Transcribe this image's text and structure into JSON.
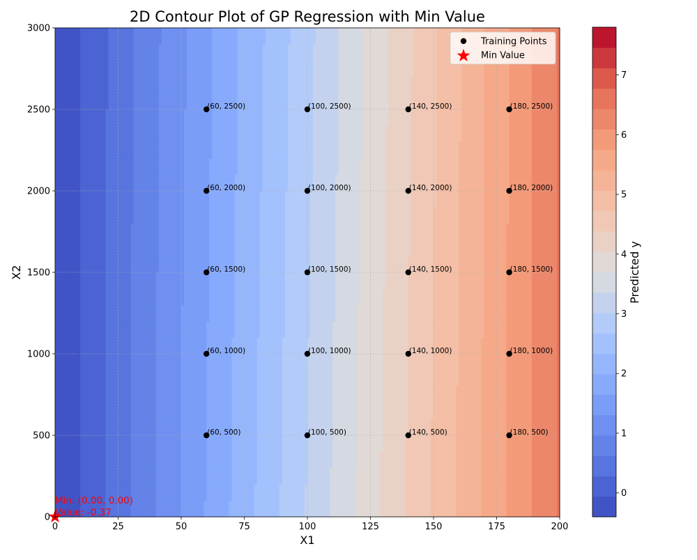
{
  "chart_data": {
    "type": "contour",
    "title": "2D Contour Plot of GP Regression with Min Value",
    "xlabel": "X1",
    "ylabel": "X2",
    "xlim": [
      0,
      200
    ],
    "ylim": [
      0,
      3000
    ],
    "x_ticks": [
      0,
      25,
      50,
      75,
      100,
      125,
      150,
      175,
      200
    ],
    "y_ticks": [
      0,
      500,
      1000,
      1500,
      2000,
      2500,
      3000
    ],
    "grid": true,
    "colormap": "coolwarm",
    "colorbar": {
      "label": "Predicted y",
      "range": [
        -0.4,
        7.8
      ],
      "ticks": [
        0,
        1,
        2,
        3,
        4,
        5,
        6,
        7
      ],
      "levels": 24
    },
    "surface": {
      "value_at_min": -0.37,
      "value_at_x1_200": 6.5,
      "description_fields": [
        "min_value"
      ]
    },
    "training_points": [
      {
        "x": 60,
        "y": 500,
        "label": "(60, 500)"
      },
      {
        "x": 60,
        "y": 1000,
        "label": "(60, 1000)"
      },
      {
        "x": 60,
        "y": 1500,
        "label": "(60, 1500)"
      },
      {
        "x": 60,
        "y": 2000,
        "label": "(60, 2000)"
      },
      {
        "x": 60,
        "y": 2500,
        "label": "(60, 2500)"
      },
      {
        "x": 100,
        "y": 500,
        "label": "(100, 500)"
      },
      {
        "x": 100,
        "y": 1000,
        "label": "(100, 1000)"
      },
      {
        "x": 100,
        "y": 1500,
        "label": "(100, 1500)"
      },
      {
        "x": 100,
        "y": 2000,
        "label": "(100, 2000)"
      },
      {
        "x": 100,
        "y": 2500,
        "label": "(100, 2500)"
      },
      {
        "x": 140,
        "y": 500,
        "label": "(140, 500)"
      },
      {
        "x": 140,
        "y": 1000,
        "label": "(140, 1000)"
      },
      {
        "x": 140,
        "y": 1500,
        "label": "(140, 1500)"
      },
      {
        "x": 140,
        "y": 2000,
        "label": "(140, 2000)"
      },
      {
        "x": 140,
        "y": 2500,
        "label": "(140, 2500)"
      },
      {
        "x": 180,
        "y": 500,
        "label": "(180, 500)"
      },
      {
        "x": 180,
        "y": 1000,
        "label": "(180, 1000)"
      },
      {
        "x": 180,
        "y": 1500,
        "label": "(180, 1500)"
      },
      {
        "x": 180,
        "y": 2000,
        "label": "(180, 2000)"
      },
      {
        "x": 180,
        "y": 2500,
        "label": "(180, 2500)"
      }
    ],
    "min_point": {
      "x": 0,
      "y": 0,
      "value": -0.37,
      "label_line1": "Min: (0.00, 0.00)",
      "label_line2": "Value: -0.37",
      "color": "#ff0000"
    },
    "legend": {
      "placement": "top-right",
      "entries": [
        {
          "label": "Training Points",
          "marker": "circle",
          "color": "#000000"
        },
        {
          "label": "Min Value",
          "marker": "star",
          "color": "#ff0000"
        }
      ]
    }
  }
}
